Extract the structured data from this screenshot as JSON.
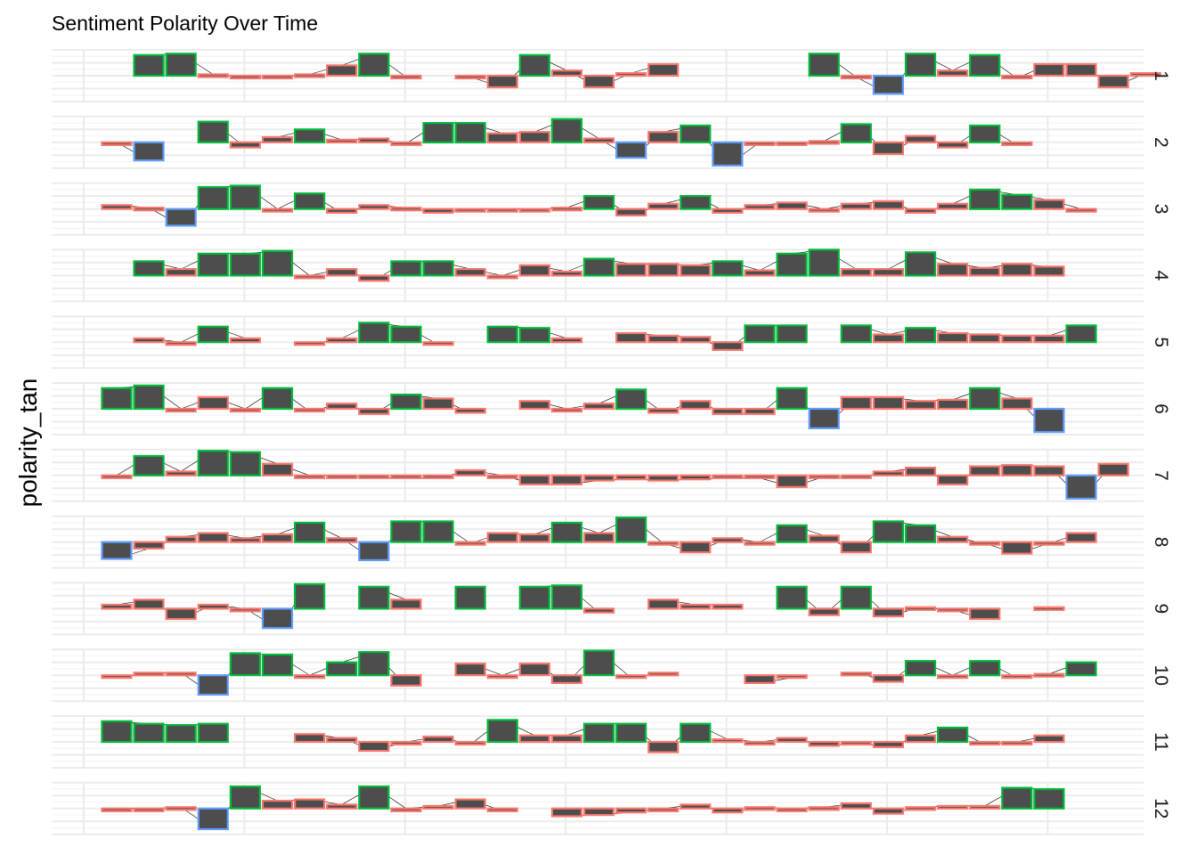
{
  "chart_data": {
    "type": "bar",
    "title": "Sentiment Polarity Over Time",
    "xlabel": "",
    "ylabel": "polarity_tan",
    "grid": true,
    "facet_labels": [
      "1",
      "2",
      "3",
      "4",
      "5",
      "6",
      "7",
      "8",
      "9",
      "10",
      "11",
      "12"
    ],
    "x": [
      1,
      2,
      3,
      4,
      5,
      6,
      7,
      8,
      9,
      10,
      11,
      12,
      13,
      14,
      15,
      16,
      17,
      18,
      19,
      20,
      21,
      22,
      23,
      24,
      25,
      26,
      27,
      28,
      29,
      30,
      31,
      32,
      33,
      34
    ],
    "ylim": [
      -1,
      1
    ],
    "bar_fill": "#4d4d4d",
    "line_color": "#000000",
    "category_colors": {
      "positive": "#00ba38",
      "neutral": "#f8766d",
      "negative": "#619cff"
    },
    "series": [
      {
        "values": [
          null,
          0.8,
          0.85,
          0.05,
          -0.05,
          -0.05,
          0.05,
          0.4,
          0.85,
          -0.05,
          null,
          -0.05,
          -0.45,
          0.8,
          0.2,
          -0.45,
          0.1,
          0.45,
          null,
          null,
          null,
          null,
          0.85,
          -0.05,
          -0.7,
          0.85,
          0.2,
          0.8,
          -0.1,
          0.45,
          0.45,
          -0.45,
          0.1,
          null
        ]
      },
      {
        "values": [
          0.0,
          -0.7,
          null,
          0.8,
          -0.2,
          0.2,
          0.5,
          0.1,
          0.15,
          -0.05,
          0.75,
          0.75,
          0.35,
          0.4,
          0.9,
          0.15,
          -0.6,
          0.4,
          0.65,
          -0.9,
          0.0,
          -0.1,
          0.05,
          0.7,
          -0.45,
          0.25,
          -0.2,
          0.65,
          -0.1,
          null,
          null,
          null,
          null,
          null
        ]
      },
      {
        "values": [
          0.15,
          0.05,
          -0.65,
          0.85,
          0.9,
          0.0,
          0.6,
          -0.15,
          0.15,
          0.05,
          -0.15,
          0.0,
          0.0,
          0.0,
          0.05,
          0.5,
          -0.25,
          0.2,
          0.5,
          -0.15,
          0.15,
          0.25,
          0.0,
          0.2,
          0.3,
          -0.15,
          0.2,
          0.75,
          0.55,
          0.35,
          0.0,
          null,
          null,
          null
        ]
      },
      {
        "values": [
          null,
          0.55,
          0.25,
          0.85,
          0.85,
          0.95,
          0.0,
          0.25,
          -0.2,
          0.55,
          0.55,
          0.25,
          0.0,
          0.4,
          0.15,
          0.65,
          0.45,
          0.45,
          0.4,
          0.55,
          0.2,
          0.85,
          1.0,
          0.25,
          0.25,
          0.9,
          0.45,
          0.3,
          0.45,
          0.35,
          null,
          null,
          null,
          null
        ]
      },
      {
        "values": [
          null,
          0.15,
          0.0,
          0.6,
          0.15,
          null,
          -0.1,
          0.15,
          0.75,
          0.6,
          -0.1,
          null,
          0.6,
          0.55,
          0.15,
          null,
          0.35,
          0.25,
          0.2,
          -0.3,
          0.65,
          0.65,
          null,
          0.65,
          0.3,
          0.55,
          0.35,
          0.3,
          0.25,
          0.25,
          0.65,
          null,
          null,
          null
        ]
      },
      {
        "values": [
          0.8,
          0.9,
          0.0,
          0.45,
          0.0,
          0.8,
          -0.1,
          0.2,
          -0.2,
          0.55,
          0.4,
          -0.15,
          null,
          0.3,
          0.0,
          0.2,
          0.75,
          -0.15,
          0.3,
          -0.2,
          -0.2,
          0.8,
          -0.75,
          0.45,
          0.45,
          0.3,
          0.35,
          0.8,
          0.4,
          -0.9,
          null,
          null,
          null,
          null
        ]
      },
      {
        "values": [
          0.0,
          0.75,
          0.15,
          0.95,
          0.9,
          0.45,
          0.0,
          0.0,
          -0.1,
          -0.1,
          -0.1,
          0.2,
          0.0,
          -0.35,
          -0.35,
          -0.2,
          -0.15,
          -0.2,
          -0.15,
          -0.1,
          -0.1,
          -0.45,
          -0.05,
          -0.1,
          0.15,
          0.3,
          -0.35,
          0.35,
          0.4,
          0.35,
          -0.9,
          0.45,
          null,
          null
        ]
      },
      {
        "values": [
          -0.65,
          -0.25,
          0.2,
          0.35,
          0.15,
          0.3,
          0.75,
          0.15,
          -0.7,
          0.8,
          0.8,
          -0.05,
          0.35,
          0.3,
          0.75,
          0.35,
          0.95,
          -0.05,
          -0.4,
          0.15,
          0.0,
          0.65,
          0.25,
          -0.4,
          0.8,
          0.65,
          0.2,
          -0.05,
          -0.45,
          -0.05,
          0.35,
          null,
          null,
          null
        ]
      },
      {
        "values": [
          0.15,
          0.35,
          -0.4,
          0.15,
          0.0,
          -0.75,
          0.95,
          null,
          0.85,
          0.35,
          null,
          0.85,
          null,
          0.85,
          0.9,
          -0.15,
          null,
          0.35,
          0.15,
          0.15,
          null,
          0.85,
          -0.25,
          0.85,
          -0.3,
          0.05,
          -0.05,
          -0.4,
          null,
          0.05,
          null,
          null,
          null,
          null
        ]
      },
      {
        "values": [
          -0.1,
          0.1,
          0.1,
          -0.75,
          0.85,
          0.8,
          0.0,
          0.5,
          0.9,
          -0.4,
          null,
          0.45,
          0.0,
          0.45,
          -0.3,
          0.95,
          -0.1,
          0.1,
          null,
          null,
          -0.3,
          -0.1,
          null,
          0.1,
          -0.25,
          0.55,
          0.0,
          0.55,
          -0.1,
          0.05,
          0.5,
          null,
          null,
          null
        ]
      },
      {
        "values": [
          0.8,
          0.7,
          0.65,
          0.7,
          null,
          null,
          0.3,
          0.15,
          -0.35,
          0.0,
          0.2,
          -0.1,
          0.85,
          0.25,
          0.25,
          0.7,
          0.7,
          -0.4,
          0.7,
          0.1,
          0.0,
          0.15,
          -0.15,
          -0.05,
          -0.2,
          0.25,
          0.55,
          -0.1,
          0.0,
          0.25,
          null,
          null,
          null,
          null
        ]
      },
      {
        "values": [
          0.0,
          0.0,
          0.05,
          -0.8,
          0.85,
          0.3,
          0.35,
          0.15,
          0.85,
          0.0,
          0.1,
          0.35,
          -0.1,
          null,
          -0.3,
          -0.25,
          -0.15,
          0.0,
          0.15,
          -0.15,
          0.05,
          0.0,
          0.05,
          0.2,
          -0.2,
          0.05,
          0.1,
          0.1,
          0.8,
          0.75,
          null,
          null,
          null,
          null
        ]
      }
    ]
  }
}
